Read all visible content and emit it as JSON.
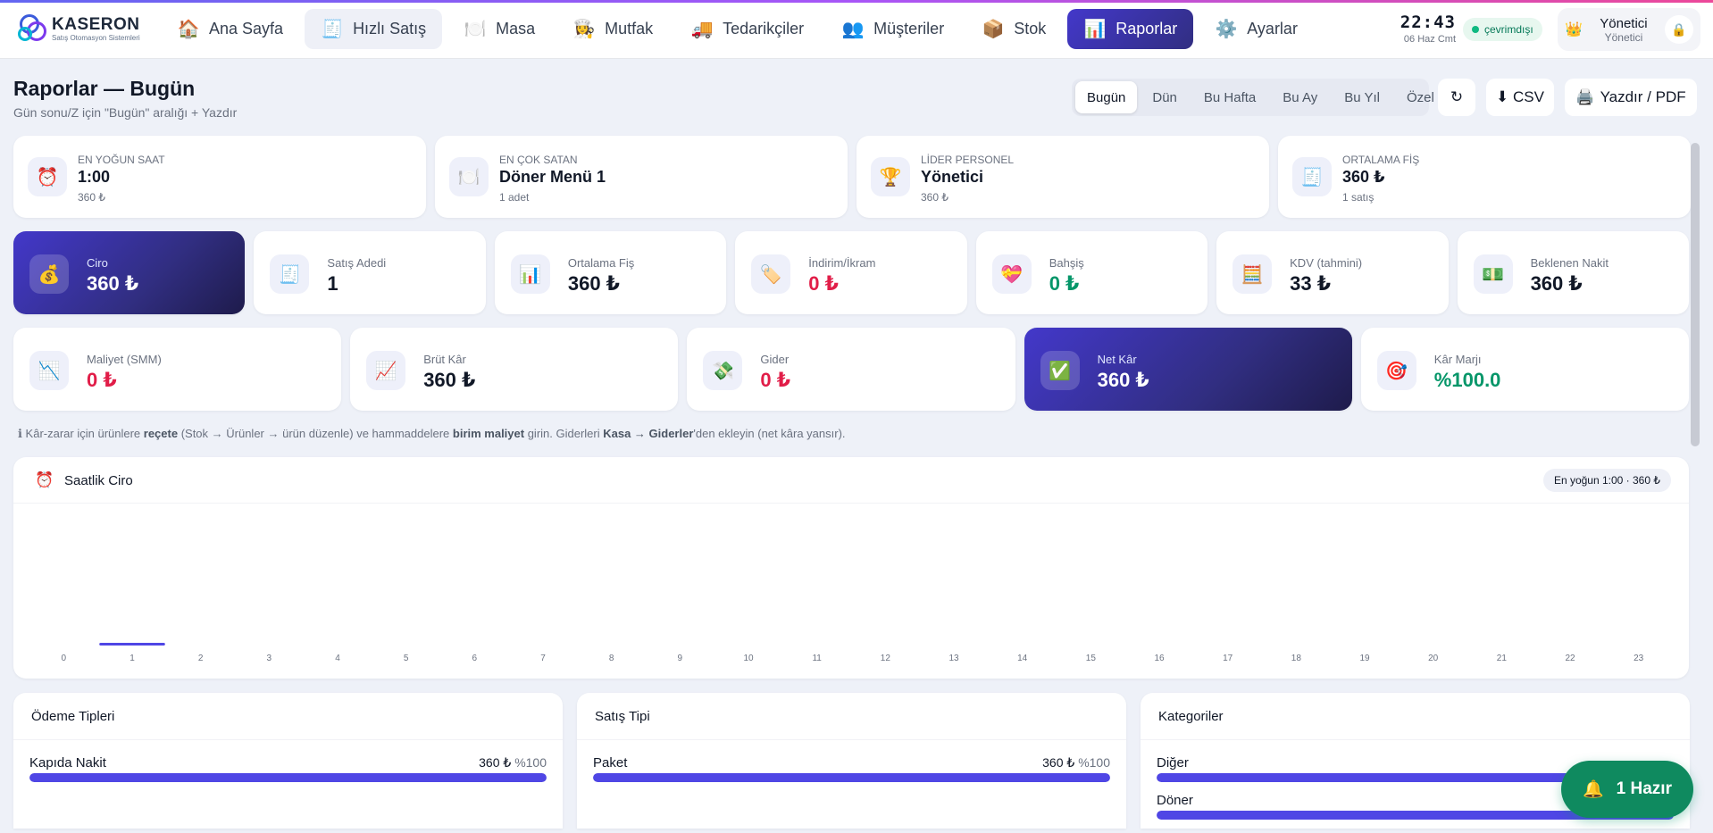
{
  "brand": {
    "name": "KASERON",
    "tagline": "Satış Otomasyon Sistemleri"
  },
  "nav": [
    {
      "label": "Ana Sayfa",
      "icon": "home-icon",
      "glyph": "🏠",
      "state": "normal"
    },
    {
      "label": "Hızlı Satış",
      "icon": "receipt-icon",
      "glyph": "🧾",
      "state": "soft"
    },
    {
      "label": "Masa",
      "icon": "plate-icon",
      "glyph": "🍽️",
      "state": "normal"
    },
    {
      "label": "Mutfak",
      "icon": "chef-icon",
      "glyph": "👩‍🍳",
      "state": "normal"
    },
    {
      "label": "Tedarikçiler",
      "icon": "truck-icon",
      "glyph": "🚚",
      "state": "normal"
    },
    {
      "label": "Müşteriler",
      "icon": "users-icon",
      "glyph": "👥",
      "state": "normal"
    },
    {
      "label": "Stok",
      "icon": "box-icon",
      "glyph": "📦",
      "state": "normal"
    },
    {
      "label": "Raporlar",
      "icon": "chart-icon",
      "glyph": "📊",
      "state": "active"
    },
    {
      "label": "Ayarlar",
      "icon": "gear-icon",
      "glyph": "⚙️",
      "state": "normal"
    }
  ],
  "header": {
    "time": "22:43",
    "date": "06 Haz Cmt",
    "connection": "çevrimdışı",
    "user_name": "Yönetici",
    "user_role": "Yönetici"
  },
  "page": {
    "title": "Raporlar — Bugün",
    "subtitle": "Gün sonu/Z için \"Bugün\" aralığı + Yazdır"
  },
  "range_tabs": [
    {
      "label": "Bugün",
      "active": true
    },
    {
      "label": "Dün",
      "active": false
    },
    {
      "label": "Bu Hafta",
      "active": false
    },
    {
      "label": "Bu Ay",
      "active": false
    },
    {
      "label": "Bu Yıl",
      "active": false
    },
    {
      "label": "Özel",
      "active": false
    }
  ],
  "tools": {
    "refresh": "↻",
    "csv": "⬇ CSV",
    "print": "Yazdır / PDF"
  },
  "highlights": [
    {
      "label": "EN YOĞUN SAAT",
      "value": "1:00",
      "sub": "360 ₺",
      "icon": "alarm-clock-icon",
      "glyph": "⏰"
    },
    {
      "label": "EN ÇOK SATAN",
      "value": "Döner Menü 1",
      "sub": "1 adet",
      "icon": "plate-icon",
      "glyph": "🍽️"
    },
    {
      "label": "LİDER PERSONEL",
      "value": "Yönetici",
      "sub": "360 ₺",
      "icon": "trophy-icon",
      "glyph": "🏆"
    },
    {
      "label": "ORTALAMA FİŞ",
      "value": "360 ₺",
      "sub": "1 satış",
      "icon": "receipt-icon",
      "glyph": "🧾"
    }
  ],
  "kpis_row1": [
    {
      "label": "Ciro",
      "value": "360 ₺",
      "icon": "money-bag-icon",
      "glyph": "💰",
      "tone": "dark"
    },
    {
      "label": "Satış Adedi",
      "value": "1",
      "icon": "receipt-icon",
      "glyph": "🧾",
      "tone": "normal"
    },
    {
      "label": "Ortalama Fiş",
      "value": "360 ₺",
      "icon": "bar-chart-icon",
      "glyph": "📊",
      "tone": "normal"
    },
    {
      "label": "İndirim/İkram",
      "value": "0 ₺",
      "icon": "tag-icon",
      "glyph": "🏷️",
      "tone": "red"
    },
    {
      "label": "Bahşiş",
      "value": "0 ₺",
      "icon": "heart-gift-icon",
      "glyph": "💝",
      "tone": "green"
    },
    {
      "label": "KDV (tahmini)",
      "value": "33 ₺",
      "icon": "abacus-icon",
      "glyph": "🧮",
      "tone": "normal"
    },
    {
      "label": "Beklenen Nakit",
      "value": "360 ₺",
      "icon": "cash-icon",
      "glyph": "💵",
      "tone": "normal"
    }
  ],
  "kpis_row2": [
    {
      "label": "Maliyet (SMM)",
      "value": "0 ₺",
      "icon": "chart-down-icon",
      "glyph": "📉",
      "tone": "red"
    },
    {
      "label": "Brüt Kâr",
      "value": "360 ₺",
      "icon": "chart-up-icon",
      "glyph": "📈",
      "tone": "normal"
    },
    {
      "label": "Gider",
      "value": "0 ₺",
      "icon": "money-wings-icon",
      "glyph": "💸",
      "tone": "red"
    },
    {
      "label": "Net Kâr",
      "value": "360 ₺",
      "icon": "check-icon",
      "glyph": "✅",
      "tone": "dark"
    },
    {
      "label": "Kâr Marjı",
      "value": "%100.0",
      "icon": "target-icon",
      "glyph": "🎯",
      "tone": "green"
    }
  ],
  "note": {
    "prefix": "ℹ Kâr-zarar için ürünlere ",
    "b1": "reçete",
    "mid1": " (Stok → Ürünler → ürün düzenle) ve hammaddelere ",
    "b2": "birim maliyet",
    "mid2": " girin. Giderleri ",
    "b3": "Kasa → Giderler",
    "suffix": "'den ekleyin (net kâra yansır)."
  },
  "hourly_chart": {
    "title": "Saatlik Ciro",
    "badge": "En yoğun 1:00 · 360 ₺"
  },
  "chart_data": {
    "type": "bar",
    "title": "Saatlik Ciro",
    "categories": [
      "0",
      "1",
      "2",
      "3",
      "4",
      "5",
      "6",
      "7",
      "8",
      "9",
      "10",
      "11",
      "12",
      "13",
      "14",
      "15",
      "16",
      "17",
      "18",
      "19",
      "20",
      "21",
      "22",
      "23"
    ],
    "values": [
      0,
      360,
      0,
      0,
      0,
      0,
      0,
      0,
      0,
      0,
      0,
      0,
      0,
      0,
      0,
      0,
      0,
      0,
      0,
      0,
      0,
      0,
      0,
      0
    ],
    "xlabel": "",
    "ylabel": "",
    "grid": false,
    "accent": "#4f46e5"
  },
  "panels": [
    {
      "title": "Ödeme Tipleri",
      "rows": [
        {
          "label": "Kapıda Nakit",
          "value": "360 ₺",
          "pct": "%100",
          "fraction": 1.0
        }
      ]
    },
    {
      "title": "Satış Tipi",
      "rows": [
        {
          "label": "Paket",
          "value": "360 ₺",
          "pct": "%100",
          "fraction": 1.0
        }
      ]
    },
    {
      "title": "Kategoriler",
      "rows": [
        {
          "label": "Diğer",
          "value": "",
          "pct": "",
          "fraction": 1.0
        },
        {
          "label": "Döner",
          "value": "",
          "pct": "",
          "fraction": 1.0
        }
      ]
    }
  ],
  "toast": {
    "label": "1 Hazır",
    "icon": "bell-icon",
    "glyph": "🔔"
  }
}
